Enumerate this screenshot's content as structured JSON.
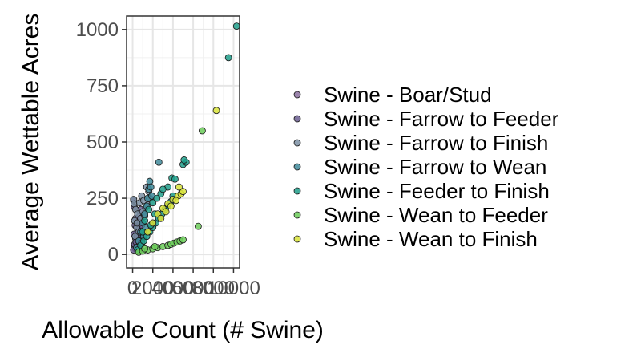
{
  "chart_data": {
    "type": "scatter",
    "title": "",
    "xlabel": "Allowable Count (# Swine)",
    "ylabel": "Average Wettable Acres",
    "xlim": [
      -600,
      10600
    ],
    "ylim": [
      -60,
      1060
    ],
    "x_ticks": [
      0,
      2000,
      4000,
      6000,
      8000,
      10000
    ],
    "x_tick_labels": [
      "0",
      "2000",
      "4000",
      "6000",
      "8000",
      "10000"
    ],
    "y_ticks": [
      0,
      250,
      500,
      750,
      1000
    ],
    "y_tick_labels": [
      "0",
      "250",
      "500",
      "750",
      "1000"
    ],
    "grid": true,
    "legend_position": "right",
    "series": [
      {
        "name": "Swine - Boar/Stud",
        "color": "#8a6f9e",
        "points": [
          [
            200,
            40
          ],
          [
            450,
            60
          ],
          [
            700,
            90
          ],
          [
            300,
            25
          ],
          [
            900,
            70
          ]
        ]
      },
      {
        "name": "Swine - Farrow to Feeder",
        "color": "#6a5d8f",
        "points": [
          [
            100,
            20
          ],
          [
            200,
            45
          ],
          [
            300,
            70
          ],
          [
            400,
            95
          ],
          [
            500,
            120
          ],
          [
            600,
            145
          ],
          [
            700,
            170
          ],
          [
            800,
            200
          ],
          [
            150,
            90
          ],
          [
            250,
            130
          ],
          [
            350,
            55
          ],
          [
            450,
            80
          ],
          [
            550,
            35
          ],
          [
            650,
            110
          ],
          [
            300,
            160
          ],
          [
            180,
            210
          ],
          [
            400,
            30
          ],
          [
            600,
            60
          ],
          [
            900,
            130
          ],
          [
            100,
            240
          ]
        ]
      },
      {
        "name": "Swine - Farrow to Finish",
        "color": "#7b8fa3",
        "points": [
          [
            100,
            245
          ],
          [
            150,
            225
          ],
          [
            300,
            200
          ],
          [
            500,
            180
          ],
          [
            700,
            230
          ],
          [
            900,
            260
          ],
          [
            1100,
            240
          ],
          [
            1300,
            210
          ],
          [
            200,
            150
          ],
          [
            400,
            120
          ],
          [
            600,
            100
          ],
          [
            800,
            160
          ],
          [
            1000,
            190
          ],
          [
            1200,
            170
          ],
          [
            1500,
            220
          ],
          [
            1700,
            250
          ],
          [
            1600,
            280
          ],
          [
            1400,
            300
          ],
          [
            250,
            80
          ],
          [
            450,
            140
          ]
        ]
      },
      {
        "name": "Swine - Farrow to Wean",
        "color": "#3f8a9a",
        "points": [
          [
            400,
            30
          ],
          [
            600,
            60
          ],
          [
            800,
            100
          ],
          [
            1000,
            140
          ],
          [
            1200,
            180
          ],
          [
            1400,
            215
          ],
          [
            1500,
            250
          ],
          [
            1600,
            290
          ],
          [
            1700,
            325
          ],
          [
            1800,
            300
          ],
          [
            2600,
            410
          ],
          [
            1100,
            80
          ],
          [
            1300,
            120
          ],
          [
            900,
            50
          ],
          [
            1900,
            260
          ]
        ]
      },
      {
        "name": "Swine - Feeder to Finish",
        "color": "#1f9e89",
        "points": [
          [
            500,
            20
          ],
          [
            800,
            40
          ],
          [
            1100,
            60
          ],
          [
            1400,
            80
          ],
          [
            1700,
            100
          ],
          [
            2000,
            120
          ],
          [
            2300,
            140
          ],
          [
            2600,
            160
          ],
          [
            2900,
            180
          ],
          [
            3200,
            200
          ],
          [
            3500,
            215
          ],
          [
            3800,
            235
          ],
          [
            4000,
            260
          ],
          [
            3500,
            300
          ],
          [
            3900,
            340
          ],
          [
            4200,
            335
          ],
          [
            5000,
            400
          ],
          [
            5300,
            410
          ],
          [
            5100,
            420
          ],
          [
            9500,
            875
          ],
          [
            10300,
            1015
          ],
          [
            1200,
            150
          ],
          [
            1600,
            200
          ],
          [
            2000,
            230
          ],
          [
            2400,
            250
          ],
          [
            2800,
            270
          ],
          [
            3000,
            290
          ],
          [
            2200,
            180
          ],
          [
            1800,
            130
          ],
          [
            1000,
            100
          ]
        ]
      },
      {
        "name": "Swine - Wean to Feeder",
        "color": "#6ccd5a",
        "points": [
          [
            600,
            10
          ],
          [
            1000,
            15
          ],
          [
            1500,
            20
          ],
          [
            2000,
            25
          ],
          [
            2500,
            30
          ],
          [
            3000,
            35
          ],
          [
            3500,
            40
          ],
          [
            3800,
            45
          ],
          [
            4100,
            50
          ],
          [
            4400,
            55
          ],
          [
            4700,
            60
          ],
          [
            5000,
            65
          ],
          [
            6900,
            550
          ],
          [
            6500,
            125
          ],
          [
            1200,
            25
          ],
          [
            2200,
            35
          ]
        ]
      },
      {
        "name": "Swine - Wean to Finish",
        "color": "#d9e43a",
        "points": [
          [
            1500,
            100
          ],
          [
            2000,
            140
          ],
          [
            2500,
            180
          ],
          [
            3000,
            205
          ],
          [
            3500,
            225
          ],
          [
            4000,
            245
          ],
          [
            4500,
            260
          ],
          [
            4800,
            270
          ],
          [
            5000,
            280
          ],
          [
            4300,
            240
          ],
          [
            8300,
            640
          ],
          [
            2800,
            160
          ],
          [
            3300,
            190
          ],
          [
            3800,
            215
          ],
          [
            4600,
            300
          ]
        ]
      }
    ]
  }
}
